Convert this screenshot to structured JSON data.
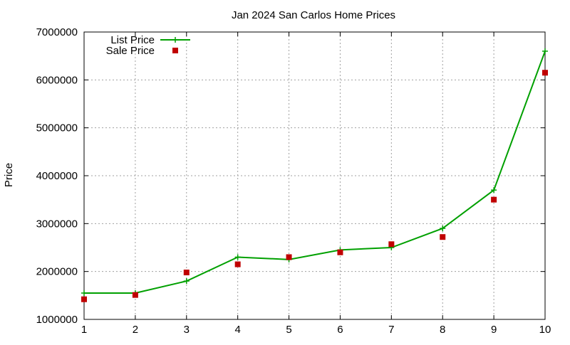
{
  "chart_data": {
    "type": "line",
    "title": "Jan 2024 San Carlos Home Prices",
    "xlabel": "",
    "ylabel": "Price",
    "x": [
      1,
      2,
      3,
      4,
      5,
      6,
      7,
      8,
      9,
      10
    ],
    "xlim": [
      1,
      10
    ],
    "ylim": [
      1000000,
      7000000
    ],
    "xticks": [
      "1",
      "2",
      "3",
      "4",
      "5",
      "6",
      "7",
      "8",
      "9",
      "10"
    ],
    "yticks": [
      "1000000",
      "2000000",
      "3000000",
      "4000000",
      "5000000",
      "6000000",
      "7000000"
    ],
    "grid": true,
    "legend_position": "top-left",
    "series": [
      {
        "name": "List Price",
        "kind": "line-with-plus-markers",
        "color": "#00a000",
        "values": [
          1550000,
          1550000,
          1800000,
          2300000,
          2250000,
          2450000,
          2500000,
          2900000,
          3700000,
          6600000
        ]
      },
      {
        "name": "Sale Price",
        "kind": "square-markers",
        "color": "#c00000",
        "values": [
          1420000,
          1510000,
          1980000,
          2150000,
          2300000,
          2400000,
          2570000,
          2720000,
          3500000,
          6150000
        ]
      }
    ]
  }
}
